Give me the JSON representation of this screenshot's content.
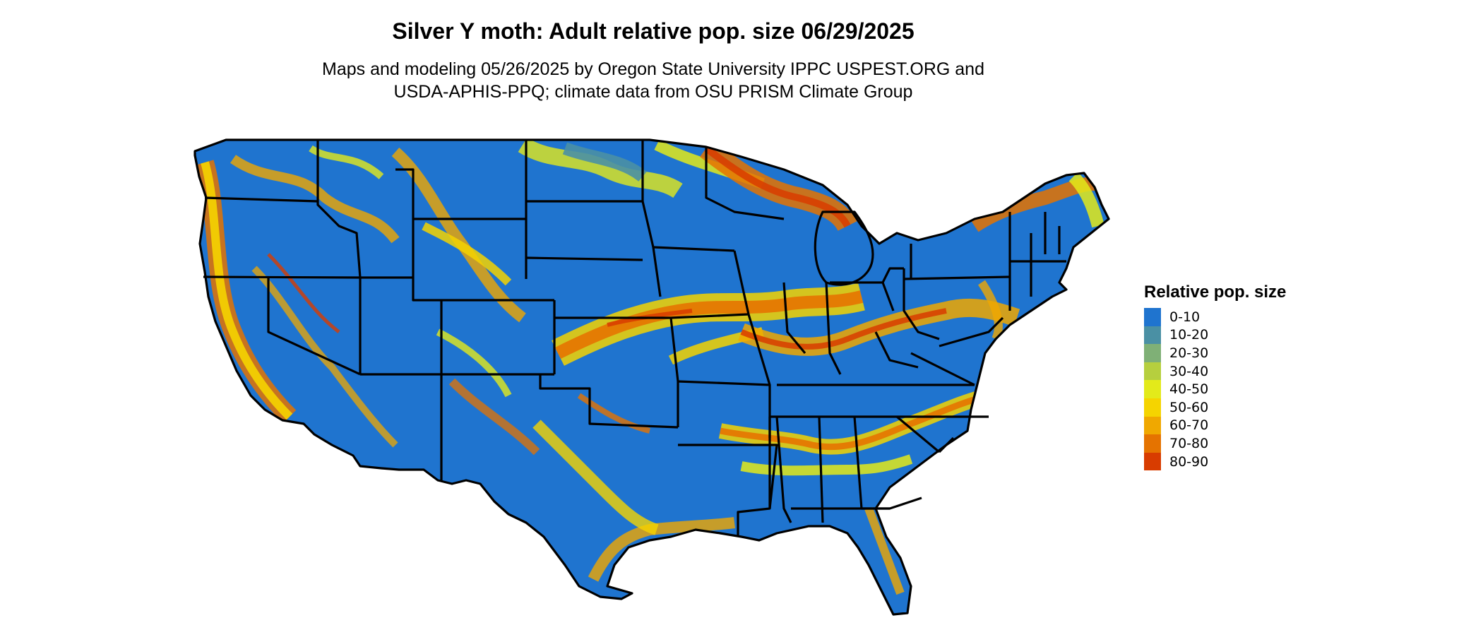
{
  "title": "Silver Y moth: Adult relative pop. size 06/29/2025",
  "subtitle": {
    "line1": "Maps and modeling 05/26/2025 by Oregon State University IPPC USPEST.ORG and",
    "line2": "USDA-APHIS-PPQ; climate data from OSU PRISM Climate Group"
  },
  "legend": {
    "title": "Relative pop. size",
    "items": [
      {
        "label": "0-10",
        "color": "#1f74cf"
      },
      {
        "label": "10-20",
        "color": "#4a90a4"
      },
      {
        "label": "20-30",
        "color": "#7fb076"
      },
      {
        "label": "30-40",
        "color": "#b6cf3e"
      },
      {
        "label": "40-50",
        "color": "#e3ea1a"
      },
      {
        "label": "50-60",
        "color": "#f5d400"
      },
      {
        "label": "60-70",
        "color": "#f0a800"
      },
      {
        "label": "70-80",
        "color": "#e57300"
      },
      {
        "label": "80-90",
        "color": "#d83c00"
      }
    ]
  },
  "map": {
    "region": "Contiguous United States",
    "base_color": "#1f74cf",
    "border_color": "#000000"
  }
}
